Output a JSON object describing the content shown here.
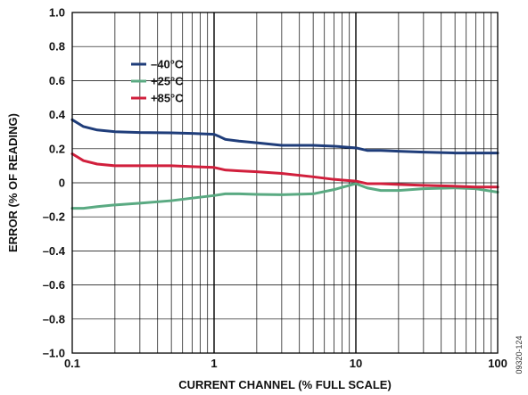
{
  "chart_data": {
    "type": "line",
    "title": "",
    "xlabel": "CURRENT CHANNEL (% FULL SCALE)",
    "ylabel": "ERROR (% OF READING)",
    "xscale": "log",
    "xlim": [
      0.1,
      100
    ],
    "ylim": [
      -1.0,
      1.0
    ],
    "grid": true,
    "legend_position": "upper-left",
    "x_tick_labels": [
      "0.1",
      "1",
      "10",
      "100"
    ],
    "y_tick_labels": [
      "1.0",
      "0.8",
      "0.6",
      "0.4",
      "0.2",
      "0",
      "–0.2",
      "–0.4",
      "–0.6",
      "–0.8",
      "–1.0"
    ],
    "figure_id": "09320-124",
    "series": [
      {
        "name": "–40°C",
        "color": "#1f3d7a",
        "x": [
          0.1,
          0.12,
          0.15,
          0.2,
          0.3,
          0.5,
          0.7,
          1.0,
          1.1,
          1.2,
          1.5,
          2,
          3,
          5,
          7,
          10,
          12,
          15,
          20,
          30,
          50,
          70,
          100
        ],
        "y": [
          0.37,
          0.33,
          0.31,
          0.3,
          0.295,
          0.293,
          0.29,
          0.285,
          0.27,
          0.255,
          0.245,
          0.235,
          0.22,
          0.22,
          0.215,
          0.205,
          0.19,
          0.19,
          0.185,
          0.18,
          0.175,
          0.175,
          0.175
        ]
      },
      {
        "name": "+25°C",
        "color": "#5aaa82",
        "x": [
          0.1,
          0.12,
          0.15,
          0.2,
          0.3,
          0.5,
          0.7,
          1.0,
          1.2,
          1.5,
          2,
          3,
          5,
          7,
          10,
          12,
          15,
          20,
          30,
          50,
          70,
          100
        ],
        "y": [
          -0.15,
          -0.15,
          -0.14,
          -0.13,
          -0.12,
          -0.105,
          -0.09,
          -0.075,
          -0.065,
          -0.065,
          -0.068,
          -0.07,
          -0.065,
          -0.04,
          -0.005,
          -0.03,
          -0.045,
          -0.045,
          -0.035,
          -0.03,
          -0.035,
          -0.055
        ]
      },
      {
        "name": "+85°C",
        "color": "#d11f3c",
        "x": [
          0.1,
          0.12,
          0.15,
          0.2,
          0.3,
          0.5,
          0.7,
          1.0,
          1.2,
          1.5,
          2,
          3,
          5,
          7,
          10,
          12,
          15,
          20,
          30,
          50,
          70,
          100
        ],
        "y": [
          0.17,
          0.13,
          0.11,
          0.1,
          0.1,
          0.1,
          0.095,
          0.09,
          0.075,
          0.07,
          0.065,
          0.055,
          0.035,
          0.02,
          0.01,
          -0.005,
          -0.005,
          -0.01,
          -0.015,
          -0.02,
          -0.025,
          -0.025
        ]
      }
    ]
  }
}
